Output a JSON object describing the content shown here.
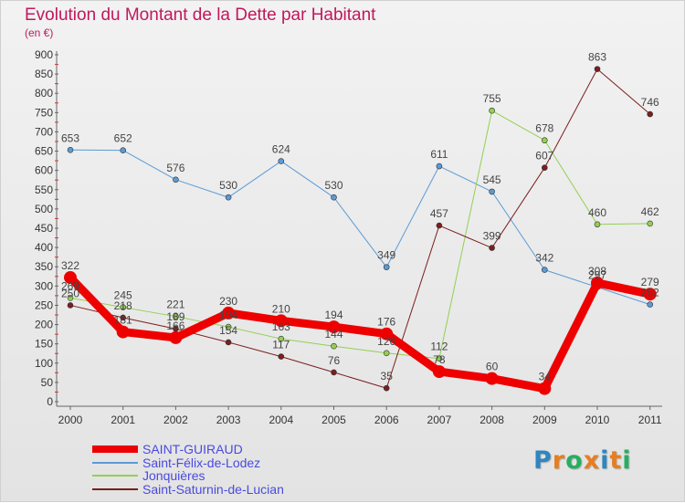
{
  "title": "Evolution du Montant de la Dette par Habitant",
  "subtitle": "(en €)",
  "logo": {
    "text": "Proxiti",
    "letters": [
      {
        "ch": "P",
        "color": "#2e86c1"
      },
      {
        "ch": "r",
        "color": "#e67e22"
      },
      {
        "ch": "o",
        "color": "#27ae60"
      },
      {
        "ch": "x",
        "color": "#e67e22"
      },
      {
        "ch": "i",
        "color": "#2e86c1"
      },
      {
        "ch": "t",
        "color": "#e67e22"
      },
      {
        "ch": "i",
        "color": "#27ae60"
      }
    ]
  },
  "chart_data": {
    "type": "line",
    "title": "Evolution du Montant de la Dette par Habitant",
    "subtitle": "(en €)",
    "xlabel": "",
    "ylabel": "",
    "categories": [
      "2000",
      "2001",
      "2002",
      "2003",
      "2004",
      "2005",
      "2006",
      "2007",
      "2008",
      "2009",
      "2010",
      "2011"
    ],
    "ylim": [
      0,
      900
    ],
    "yticks": [
      0,
      50,
      100,
      150,
      200,
      250,
      300,
      350,
      400,
      450,
      500,
      550,
      600,
      650,
      700,
      750,
      800,
      850,
      900
    ],
    "grid": false,
    "legend_position": "bottom-left",
    "series": [
      {
        "name": "Saint-Félix-de-Lodez",
        "color": "#5b9bd5",
        "stroke": 1,
        "values": [
          653,
          652,
          576,
          530,
          624,
          530,
          349,
          611,
          545,
          342,
          297,
          252
        ],
        "labels": [
          "653",
          "652",
          "576",
          "530",
          "624",
          "530",
          "349",
          "611",
          "545",
          "342",
          "297",
          "252"
        ]
      },
      {
        "name": "Jonquières",
        "color": "#92d050",
        "stroke": 1,
        "values": [
          269,
          245,
          221,
          194,
          163,
          144,
          126,
          112,
          755,
          678,
          460,
          462
        ],
        "labels": [
          "269",
          "245",
          "221",
          "194",
          "163",
          "144",
          "126",
          "112",
          "755",
          "678",
          "460",
          "462"
        ]
      },
      {
        "name": "Saint-Saturnin-de-Lucian",
        "color": "#7b1e1e",
        "stroke": 1,
        "values": [
          250,
          218,
          189,
          154,
          117,
          76,
          35,
          457,
          399,
          607,
          863,
          746
        ],
        "labels": [
          "250",
          "218",
          "189",
          "154",
          "117",
          "76",
          "35",
          "457",
          "399",
          "607",
          "863",
          "746"
        ]
      },
      {
        "name": "SAINT-GUIRAUD",
        "color": "#ee0000",
        "stroke": 9,
        "values": [
          322,
          181,
          166,
          230,
          210,
          194,
          176,
          78,
          60,
          34,
          308,
          279
        ],
        "labels": [
          "322",
          "181",
          "166",
          "230",
          "210",
          "194",
          "176",
          "78",
          "60",
          "34",
          "308",
          "279"
        ]
      }
    ],
    "legend": [
      "SAINT-GUIRAUD",
      "Saint-Félix-de-Lodez",
      "Jonquières",
      "Saint-Saturnin-de-Lucian"
    ]
  }
}
